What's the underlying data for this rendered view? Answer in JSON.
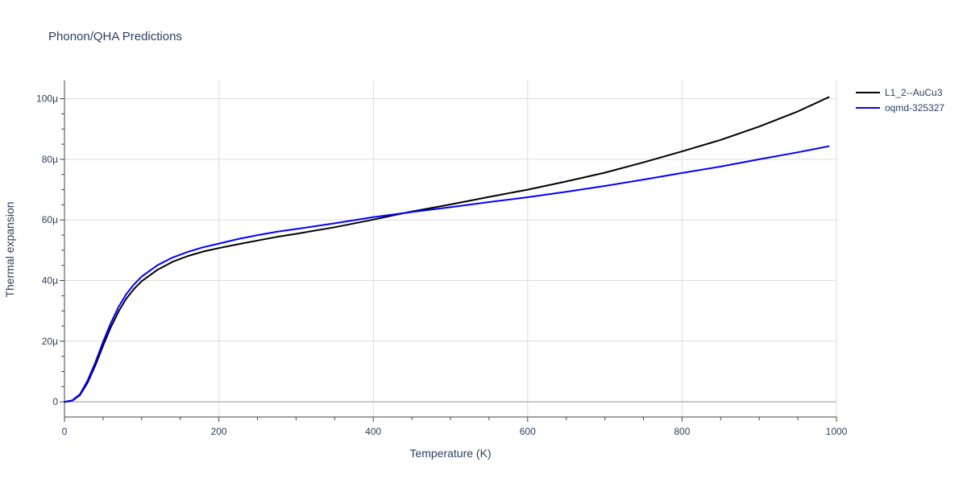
{
  "chart_data": {
    "type": "line",
    "title": "Phonon/QHA Predictions",
    "xlabel": "Temperature (K)",
    "ylabel": "Thermal expansion",
    "xlim": [
      0,
      1000
    ],
    "ylim": [
      -5,
      106
    ],
    "y_unit": "μ (1e-6)",
    "x_ticks": [
      0,
      200,
      400,
      600,
      800,
      1000
    ],
    "x_tick_labels": [
      "0",
      "200",
      "400",
      "600",
      "800",
      "1000"
    ],
    "y_ticks": [
      0,
      20,
      40,
      60,
      80,
      100
    ],
    "y_tick_labels": [
      "0",
      "20μ",
      "40μ",
      "60μ",
      "80μ",
      "100μ"
    ],
    "grid": true,
    "legend_position": "top-right",
    "series": [
      {
        "name": "L1_2--AuCu3",
        "color": "#000000",
        "x": [
          0,
          10,
          20,
          30,
          40,
          50,
          60,
          70,
          80,
          90,
          100,
          120,
          140,
          160,
          180,
          200,
          225,
          250,
          275,
          300,
          350,
          400,
          450,
          500,
          550,
          600,
          650,
          700,
          750,
          800,
          850,
          900,
          950,
          990
        ],
        "y": [
          0,
          0.4,
          2.2,
          6.3,
          12.0,
          18.5,
          24.6,
          29.8,
          34.0,
          37.2,
          39.8,
          43.5,
          46.2,
          48.1,
          49.6,
          50.7,
          52.0,
          53.2,
          54.4,
          55.4,
          57.6,
          60.1,
          62.8,
          65.1,
          67.6,
          70.0,
          72.7,
          75.6,
          79.0,
          82.6,
          86.4,
          90.8,
          95.8,
          100.5
        ]
      },
      {
        "name": "oqmd-325327",
        "color": "#0000ff",
        "x": [
          0,
          10,
          20,
          30,
          40,
          50,
          60,
          70,
          80,
          90,
          100,
          120,
          140,
          160,
          180,
          200,
          225,
          250,
          275,
          300,
          350,
          400,
          450,
          500,
          550,
          600,
          650,
          700,
          750,
          800,
          850,
          900,
          950,
          990
        ],
        "y": [
          0,
          0.5,
          2.5,
          7.0,
          13.0,
          19.8,
          26.0,
          31.3,
          35.5,
          38.7,
          41.3,
          45.0,
          47.6,
          49.5,
          51.0,
          52.2,
          53.7,
          55.0,
          56.1,
          57.0,
          58.9,
          60.9,
          62.6,
          64.2,
          65.9,
          67.5,
          69.3,
          71.2,
          73.3,
          75.5,
          77.6,
          80.0,
          82.3,
          84.3
        ]
      }
    ]
  }
}
